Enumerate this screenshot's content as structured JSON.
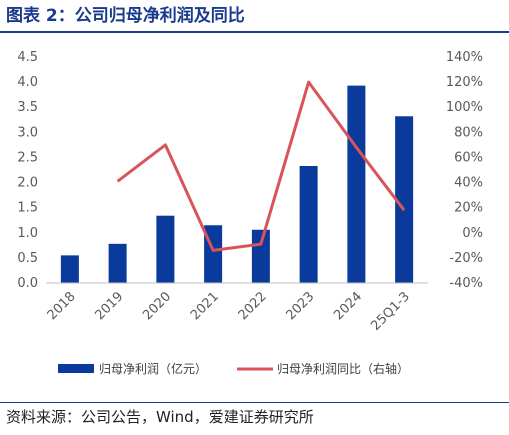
{
  "title": "图表 2：公司归母净利润及同比",
  "source": "资料来源：公司公告，Wind，爱建证券研究所",
  "colors": {
    "bar": "#0a3a9c",
    "line": "#d9545a",
    "title": "#1a3a8c"
  },
  "chart_data": {
    "type": "bar",
    "categories": [
      "2018",
      "2019",
      "2020",
      "2021",
      "2022",
      "2023",
      "2024",
      "25Q1-3"
    ],
    "series": [
      {
        "name": "归母净利润（亿元）",
        "type": "bar",
        "axis": "left",
        "values": [
          0.55,
          0.78,
          1.34,
          1.15,
          1.06,
          2.33,
          3.93,
          3.32
        ]
      },
      {
        "name": "归母净利润同比（右轴）",
        "type": "line",
        "axis": "right",
        "values": [
          null,
          41,
          70,
          -14,
          -9,
          120,
          68,
          18
        ]
      }
    ],
    "y_left": {
      "min": 0,
      "max": 4.5,
      "ticks": [
        "0.0",
        "0.5",
        "1.0",
        "1.5",
        "2.0",
        "2.5",
        "3.0",
        "3.5",
        "4.0",
        "4.5"
      ]
    },
    "y_right": {
      "min": -40,
      "max": 140,
      "ticks": [
        "-40%",
        "-20%",
        "0%",
        "20%",
        "40%",
        "60%",
        "80%",
        "100%",
        "120%",
        "140%"
      ]
    },
    "grid": false,
    "legend": "bottom"
  }
}
